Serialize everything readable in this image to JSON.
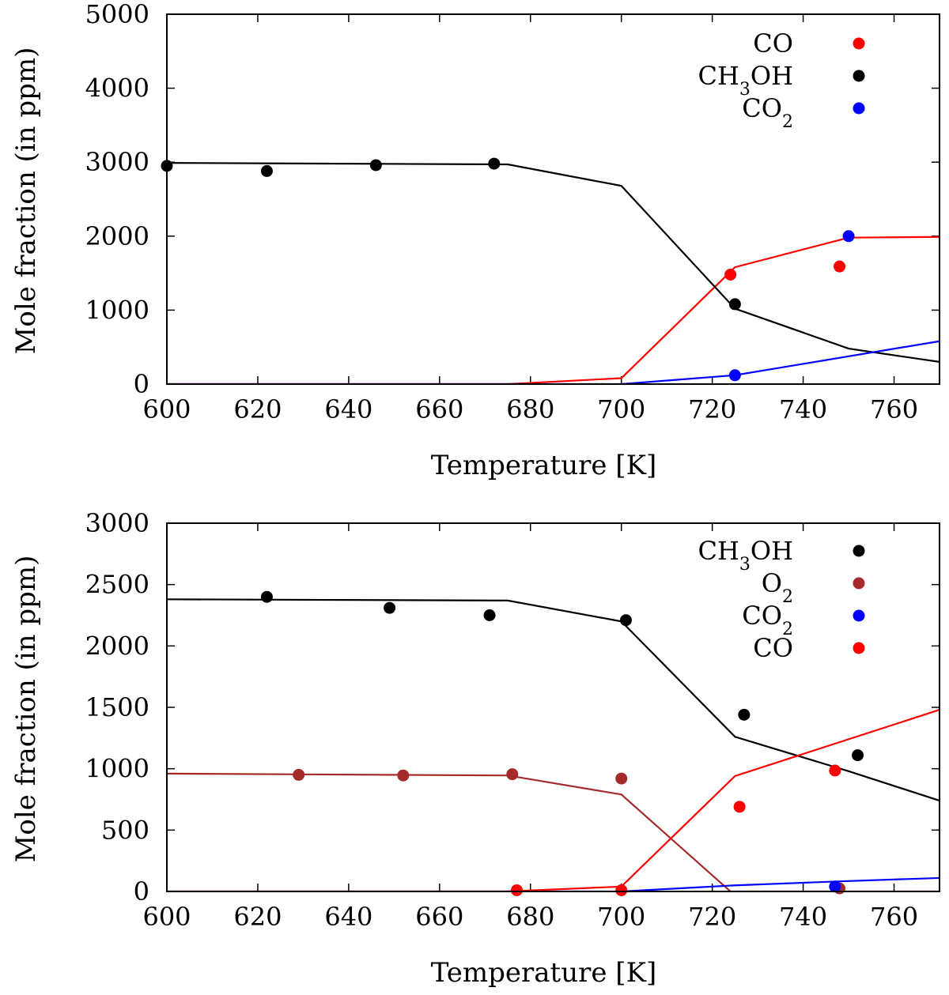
{
  "chart_data": [
    {
      "type": "scatter",
      "xlabel": "Temperature [K]",
      "ylabel": "Mole fraction (in ppm)",
      "xlim": [
        600,
        770
      ],
      "ylim": [
        0,
        5000
      ],
      "xticks": [
        600,
        620,
        640,
        660,
        680,
        700,
        720,
        740,
        760
      ],
      "yticks": [
        0,
        1000,
        2000,
        3000,
        4000,
        5000
      ],
      "legend_position": "top-right",
      "series": [
        {
          "name": "CO",
          "color": "#ff0000",
          "points": [
            [
              724,
              1480
            ],
            [
              748,
              1590
            ]
          ],
          "line": [
            [
              600,
              0
            ],
            [
              675,
              0
            ],
            [
              700,
              80
            ],
            [
              725,
              1580
            ],
            [
              750,
              1980
            ],
            [
              770,
              1990
            ]
          ]
        },
        {
          "name": "CH3OH",
          "color": "#000000",
          "points": [
            [
              600,
              2950
            ],
            [
              622,
              2880
            ],
            [
              646,
              2960
            ],
            [
              672,
              2980
            ],
            [
              725,
              1080
            ]
          ],
          "line": [
            [
              600,
              2990
            ],
            [
              675,
              2970
            ],
            [
              700,
              2680
            ],
            [
              725,
              1020
            ],
            [
              750,
              480
            ],
            [
              770,
              300
            ]
          ]
        },
        {
          "name": "CO2",
          "color": "#0000ff",
          "points": [
            [
              725,
              120
            ],
            [
              750,
              2000
            ]
          ],
          "line": [
            [
              600,
              0
            ],
            [
              700,
              0
            ],
            [
              725,
              120
            ],
            [
              770,
              580
            ]
          ]
        }
      ]
    },
    {
      "type": "scatter",
      "xlabel": "Temperature [K]",
      "ylabel": "Mole fraction (in ppm)",
      "xlim": [
        600,
        770
      ],
      "ylim": [
        0,
        3000
      ],
      "xticks": [
        600,
        620,
        640,
        660,
        680,
        700,
        720,
        740,
        760
      ],
      "yticks": [
        0,
        500,
        1000,
        1500,
        2000,
        2500,
        3000
      ],
      "legend_position": "top-right",
      "series": [
        {
          "name": "CH3OH",
          "color": "#000000",
          "points": [
            [
              622,
              2400
            ],
            [
              649,
              2310
            ],
            [
              671,
              2250
            ],
            [
              701,
              2210
            ],
            [
              727,
              1440
            ],
            [
              752,
              1110
            ]
          ],
          "line": [
            [
              600,
              2380
            ],
            [
              675,
              2370
            ],
            [
              700,
              2200
            ],
            [
              725,
              1260
            ],
            [
              750,
              980
            ],
            [
              770,
              740
            ]
          ]
        },
        {
          "name": "O2",
          "color": "#a52a2a",
          "points": [
            [
              629,
              950
            ],
            [
              652,
              945
            ],
            [
              676,
              955
            ],
            [
              700,
              920
            ],
            [
              748,
              25
            ]
          ],
          "line": [
            [
              600,
              960
            ],
            [
              675,
              945
            ],
            [
              700,
              790
            ],
            [
              724,
              0
            ],
            [
              770,
              0
            ]
          ]
        },
        {
          "name": "CO2",
          "color": "#0000ff",
          "points": [
            [
              747,
              40
            ]
          ],
          "line": [
            [
              600,
              0
            ],
            [
              700,
              0
            ],
            [
              725,
              50
            ],
            [
              750,
              85
            ],
            [
              770,
              110
            ]
          ]
        },
        {
          "name": "CO",
          "color": "#ff0000",
          "points": [
            [
              677,
              10
            ],
            [
              700,
              10
            ],
            [
              726,
              690
            ],
            [
              747,
              985
            ]
          ],
          "line": [
            [
              600,
              0
            ],
            [
              675,
              0
            ],
            [
              700,
              40
            ],
            [
              725,
              940
            ],
            [
              770,
              1480
            ]
          ]
        }
      ]
    }
  ]
}
